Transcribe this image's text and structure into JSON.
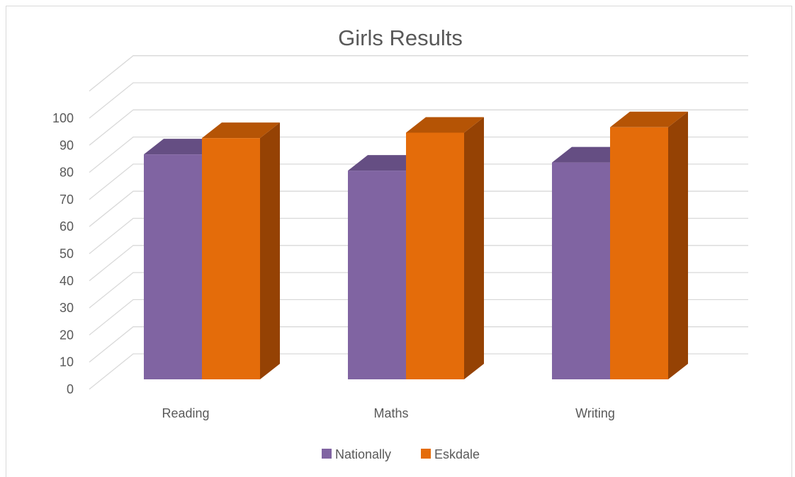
{
  "chart_data": {
    "type": "bar",
    "title": "Girls Results",
    "categories": [
      "Reading",
      "Maths",
      "Writing"
    ],
    "series": [
      {
        "name": "Nationally",
        "values": [
          83,
          77,
          80
        ],
        "color": "#8064a2",
        "top_color": "#654e83",
        "side_color": "#5f4a7a"
      },
      {
        "name": "Eskdale",
        "values": [
          89,
          91,
          93
        ],
        "color": "#e46c0a",
        "top_color": "#b55405",
        "side_color": "#954204"
      }
    ],
    "y_ticks": [
      "0",
      "10",
      "20",
      "30",
      "40",
      "50",
      "60",
      "70",
      "80",
      "90",
      "100"
    ],
    "ylim": [
      0,
      110
    ],
    "grid": true,
    "legend_position": "bottom",
    "gridline_color": "#d9d9d9"
  }
}
